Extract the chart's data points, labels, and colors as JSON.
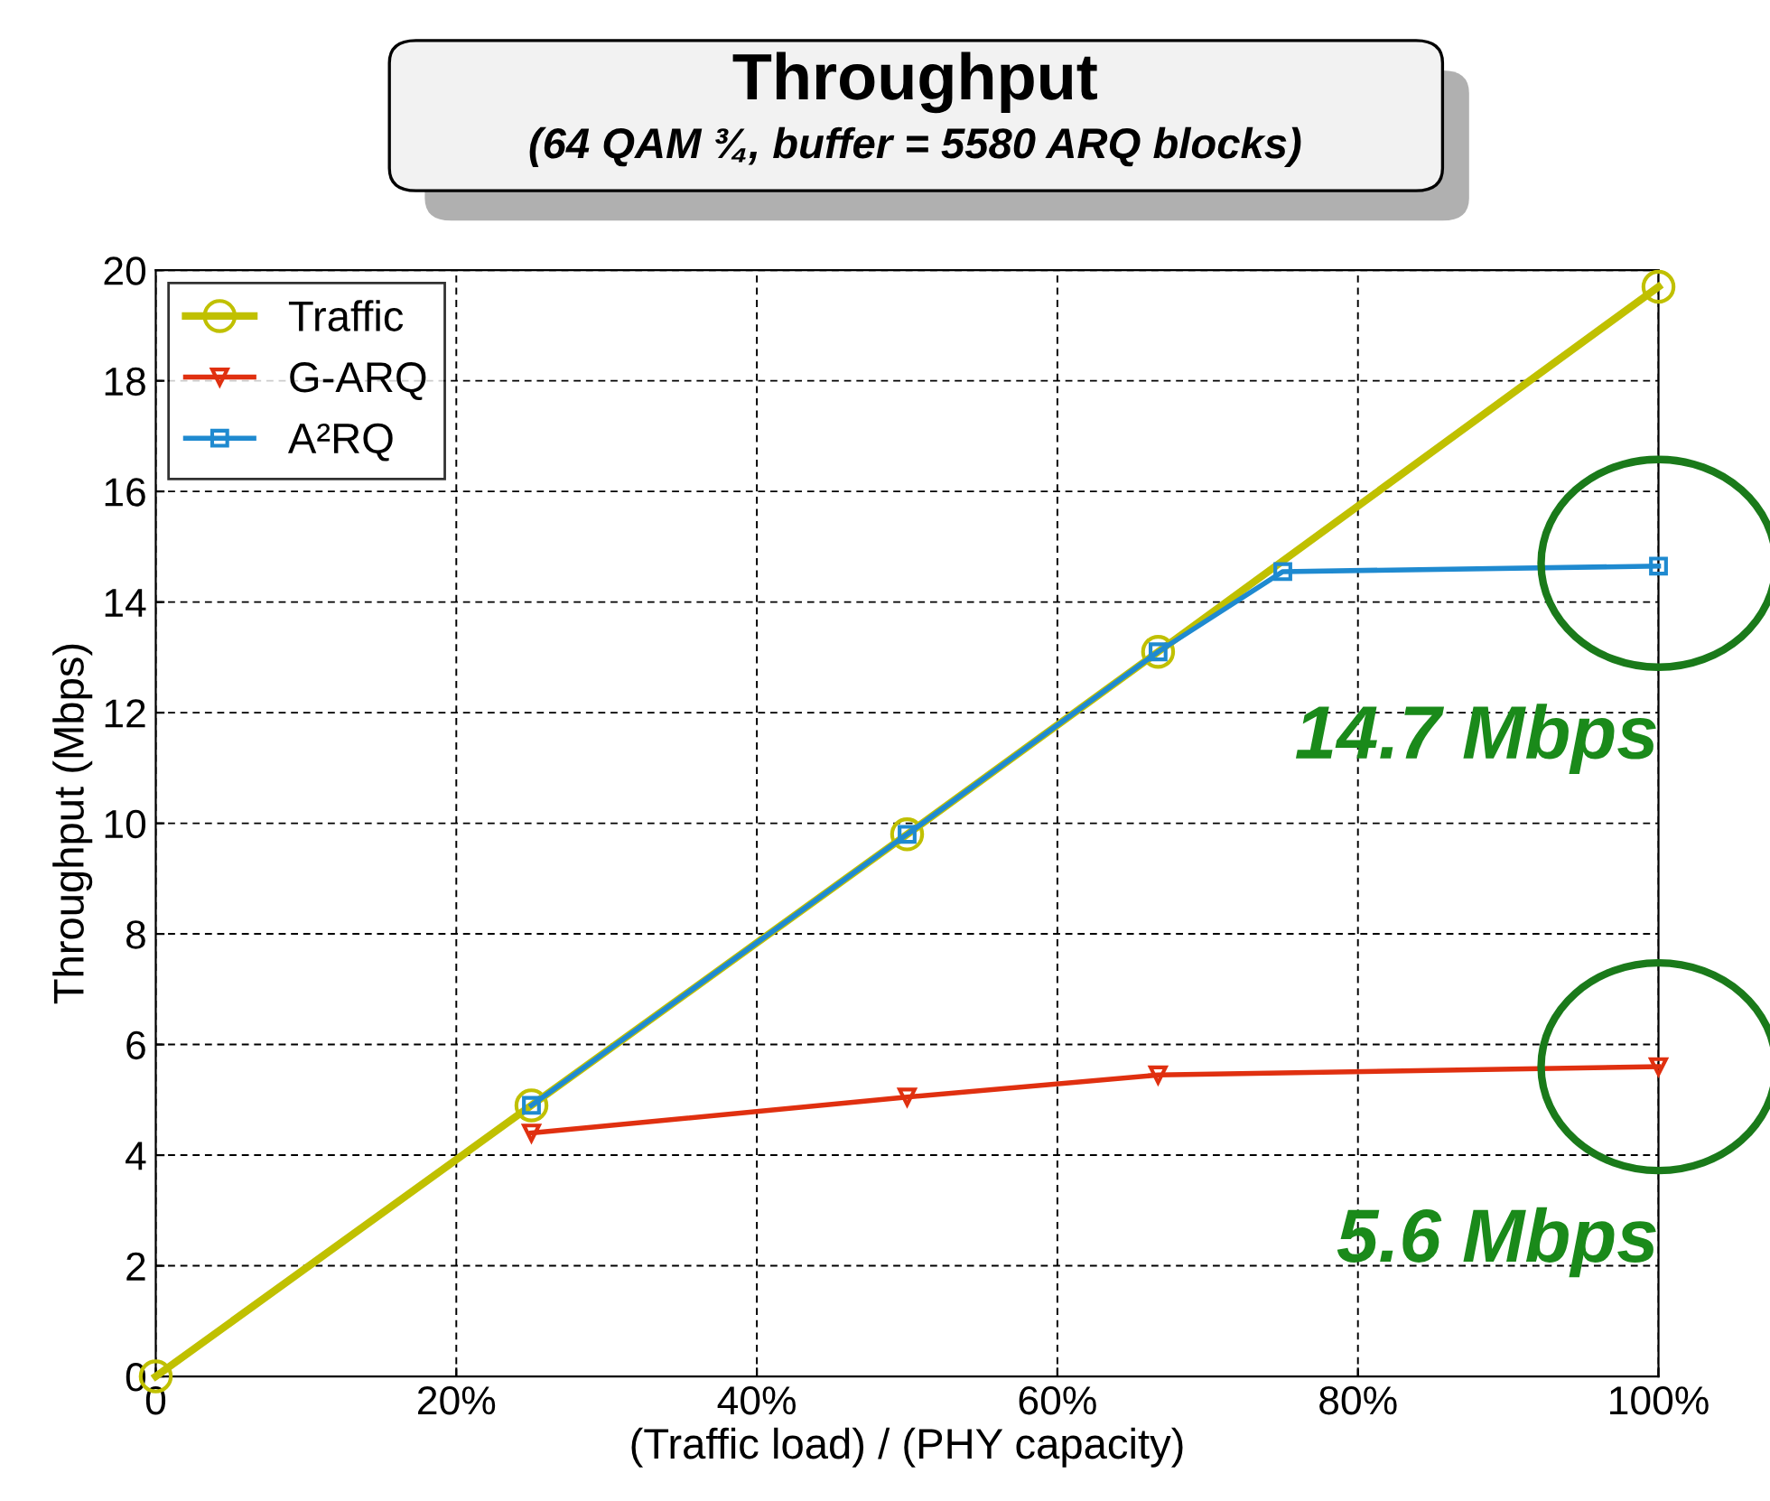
{
  "chart_data": {
    "type": "line",
    "title": "Throughput",
    "subtitle": "(64 QAM ¾, buffer = 5580 ARQ blocks)",
    "xlabel": "(Traffic load) / (PHY capacity)",
    "ylabel": "Throughput (Mbps)",
    "series": [
      {
        "name": "Traffic",
        "color": "#c0c000",
        "marker": "circle",
        "x": [
          0,
          25,
          50,
          66.7,
          100
        ],
        "values": [
          0,
          4.9,
          9.8,
          13.1,
          19.7
        ]
      },
      {
        "name": "G-ARQ",
        "color": "#e03010",
        "marker": "triangle",
        "x": [
          25,
          50,
          66.7,
          100
        ],
        "values": [
          4.4,
          5.05,
          5.45,
          5.6
        ]
      },
      {
        "name": "A²RQ",
        "color": "#1f8ad0",
        "marker": "square",
        "x": [
          25,
          50,
          66.7,
          75,
          100
        ],
        "values": [
          4.9,
          9.8,
          13.1,
          14.55,
          14.65
        ]
      }
    ],
    "xlim": [
      0,
      100
    ],
    "ylim": [
      0,
      20
    ],
    "xticks": [
      0,
      {
        "value": 20,
        "label": "20%"
      },
      {
        "value": 40,
        "label": "40%"
      },
      {
        "value": 60,
        "label": "60%"
      },
      {
        "value": 80,
        "label": "80%"
      },
      {
        "value": 100,
        "label": "100%"
      }
    ],
    "yticks": [
      0,
      2,
      4,
      6,
      8,
      10,
      12,
      14,
      16,
      18,
      20
    ],
    "annotations": [
      {
        "text": "14.7 Mbps",
        "x": 100,
        "y": 14.7
      },
      {
        "text": "5.6 Mbps",
        "x": 100,
        "y": 5.6
      }
    ],
    "grid": true,
    "legend": "top left",
    "line_style": "solid"
  }
}
